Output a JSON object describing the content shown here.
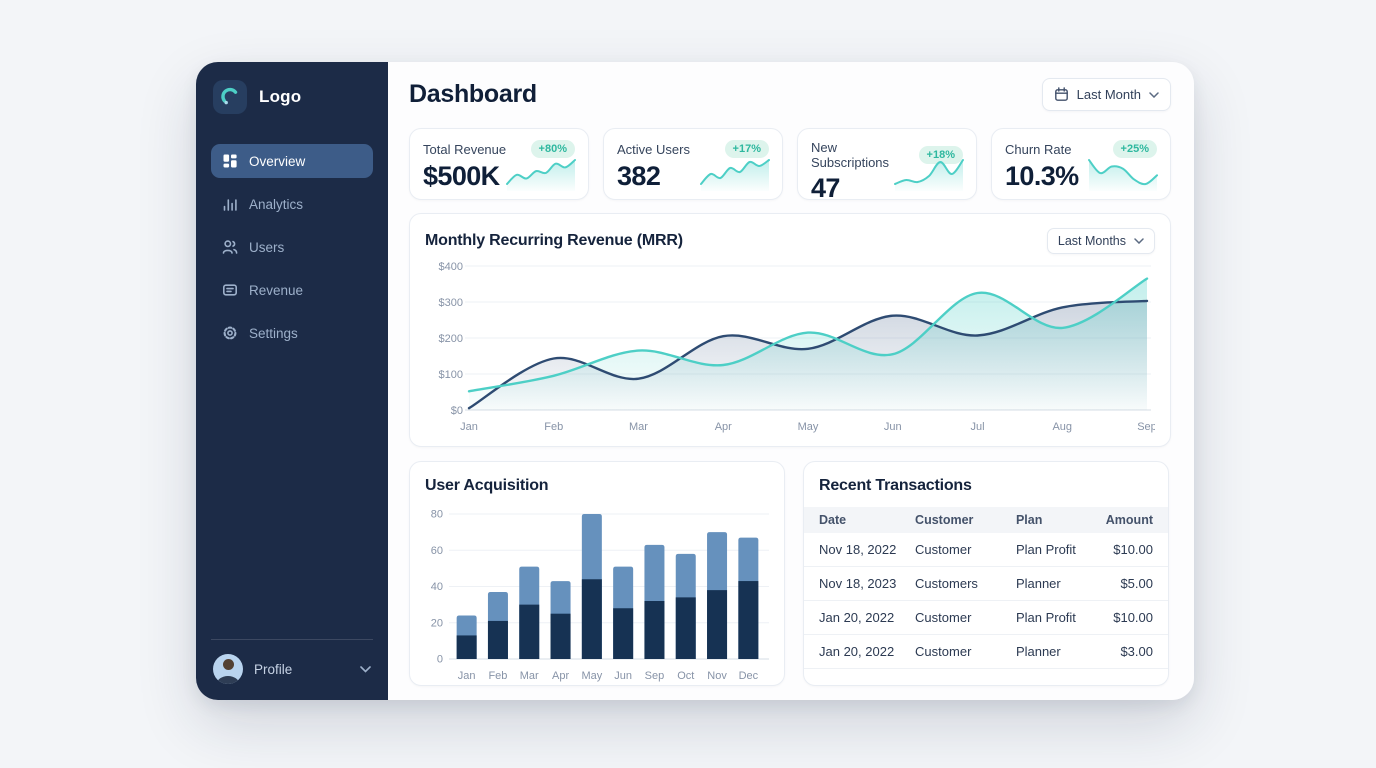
{
  "colors": {
    "sidebar_bg": "#1c2b47",
    "active_item_bg": "#3d5c88",
    "accent_teal": "#4dcfc6",
    "badge_green": "#2eb89f",
    "dark_navy_line": "#2e4b72",
    "bar_dark": "#163253",
    "bar_light": "#6691bd"
  },
  "sidebar": {
    "logo_label": "Logo",
    "logo_icon": "arc-logo-icon",
    "items": [
      {
        "label": "Overview",
        "icon": "grid-icon",
        "active": true
      },
      {
        "label": "Analytics",
        "icon": "bar-chart-icon",
        "active": false
      },
      {
        "label": "Users",
        "icon": "users-icon",
        "active": false
      },
      {
        "label": "Revenue",
        "icon": "wallet-icon",
        "active": false
      },
      {
        "label": "Settings",
        "icon": "gear-icon",
        "active": false
      }
    ],
    "profile_label": "Profile",
    "profile_icon": "avatar"
  },
  "header": {
    "title": "Dashboard",
    "period_label": "Last Month",
    "period_icon": "calendar-icon"
  },
  "stats": [
    {
      "label": "Total Revenue",
      "value": "$500K",
      "badge": "+80%",
      "trend": "up",
      "spark": [
        12,
        22,
        18,
        26,
        24,
        34,
        30,
        38
      ]
    },
    {
      "label": "Active Users",
      "value": "382",
      "badge": "+17%",
      "trend": "up",
      "spark": [
        14,
        24,
        20,
        30,
        26,
        36,
        32,
        38
      ]
    },
    {
      "label": "New Subscriptions",
      "value": "47",
      "badge": "+18%",
      "trend": "up",
      "spark": [
        14,
        18,
        16,
        22,
        36,
        24,
        38
      ]
    },
    {
      "label": "Churn Rate",
      "value": "10.3%",
      "badge": "+25%",
      "trend": "down",
      "spark": [
        38,
        26,
        32,
        30,
        20,
        16,
        24
      ]
    }
  ],
  "mrr": {
    "title": "Monthly Recurring Revenue (MRR)",
    "period_label": "Last Months"
  },
  "user_acquisition": {
    "title": "User Acquisition"
  },
  "transactions": {
    "title": "Recent Transactions",
    "columns": [
      "Date",
      "Customer",
      "Plan",
      "Amount"
    ],
    "rows": [
      {
        "date": "Nov 18, 2022",
        "customer": "Customer",
        "plan": "Plan Profit",
        "amount": "$10.00"
      },
      {
        "date": "Nov 18, 2023",
        "customer": "Customers",
        "plan": "Planner",
        "amount": "$5.00"
      },
      {
        "date": "Jan 20, 2022",
        "customer": "Customer",
        "plan": "Plan Profit",
        "amount": "$10.00"
      },
      {
        "date": "Jan 20, 2022",
        "customer": "Customer",
        "plan": "Planner",
        "amount": "$3.00"
      }
    ]
  },
  "chart_data": [
    {
      "id": "mrr",
      "type": "area",
      "title": "Monthly Recurring Revenue (MRR)",
      "x": [
        "Jan",
        "Feb",
        "Mar",
        "Apr",
        "May",
        "Jun",
        "Jul",
        "Aug",
        "Sep"
      ],
      "series": [
        {
          "name": "MRR (dark)",
          "color": "#2e4b72",
          "values": [
            5,
            143,
            87,
            205,
            170,
            262,
            207,
            285,
            303
          ]
        },
        {
          "name": "MRR (teal)",
          "color": "#4dcfc6",
          "values": [
            52,
            95,
            165,
            125,
            215,
            155,
            325,
            228,
            365
          ]
        }
      ],
      "ylim": [
        0,
        400
      ],
      "yticks": [
        0,
        100,
        200,
        300,
        400
      ],
      "ytick_labels": [
        "$0",
        "$100",
        "$200",
        "$300",
        "$400"
      ],
      "grid": true,
      "legend": "none"
    },
    {
      "id": "user_acquisition",
      "type": "bar",
      "title": "User Acquisition",
      "categories": [
        "Jan",
        "Feb",
        "Mar",
        "Apr",
        "May",
        "Jun",
        "Sep",
        "Oct",
        "Nov",
        "Dec"
      ],
      "series": [
        {
          "name": "segment-dark",
          "color": "#163253",
          "values": [
            13,
            21,
            30,
            25,
            44,
            28,
            32,
            34,
            38,
            43
          ]
        },
        {
          "name": "segment-light",
          "color": "#6691bd",
          "values": [
            11,
            16,
            21,
            18,
            36,
            23,
            31,
            24,
            32,
            24
          ]
        }
      ],
      "stacked": true,
      "ylim": [
        0,
        80
      ],
      "yticks": [
        0,
        20,
        40,
        60,
        80
      ],
      "grid": true,
      "legend": "none"
    }
  ]
}
